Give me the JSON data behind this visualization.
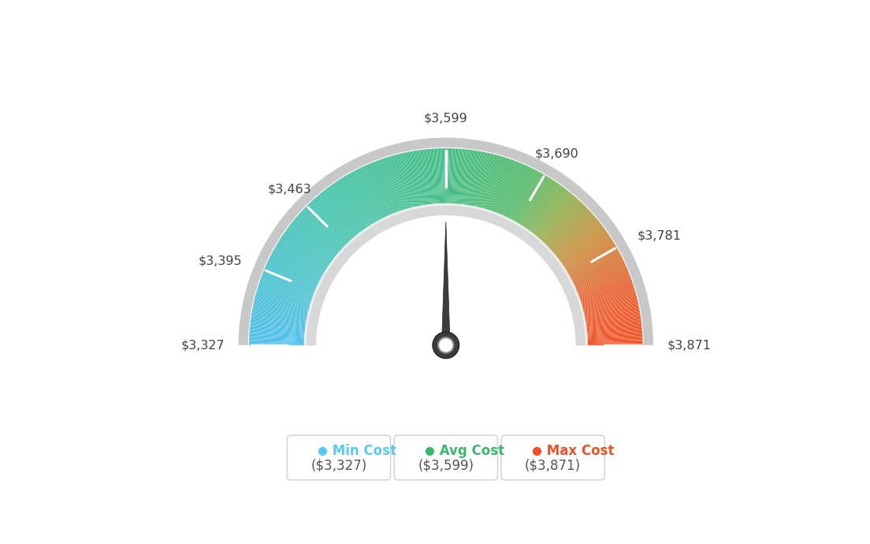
{
  "min_val": 3327,
  "avg_val": 3599,
  "max_val": 3871,
  "tick_labels": [
    "$3,327",
    "$3,395",
    "$3,463",
    "$3,599",
    "$3,690",
    "$3,781",
    "$3,871"
  ],
  "tick_values": [
    3327,
    3395,
    3463,
    3599,
    3690,
    3781,
    3871
  ],
  "legend": [
    {
      "label": "Min Cost",
      "value": "($3,327)",
      "color": "#5bc8f0"
    },
    {
      "label": "Avg Cost",
      "value": "($3,599)",
      "color": "#3ab86e"
    },
    {
      "label": "Max Cost",
      "value": "($3,871)",
      "color": "#f05025"
    }
  ],
  "background_color": "#ffffff",
  "needle_value": 3599,
  "color_stops": [
    [
      0.0,
      [
        75,
        190,
        235
      ]
    ],
    [
      0.25,
      [
        65,
        195,
        175
      ]
    ],
    [
      0.5,
      [
        62,
        188,
        130
      ]
    ],
    [
      0.65,
      [
        80,
        185,
        100
      ]
    ],
    [
      0.72,
      [
        140,
        175,
        75
      ]
    ],
    [
      0.8,
      [
        200,
        140,
        55
      ]
    ],
    [
      0.9,
      [
        230,
        95,
        45
      ]
    ],
    [
      1.0,
      [
        240,
        80,
        35
      ]
    ]
  ]
}
